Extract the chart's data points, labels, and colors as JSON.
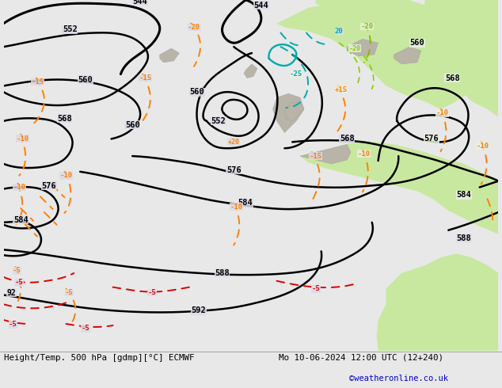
{
  "title_left": "Height/Temp. 500 hPa [gdmp][°C] ECMWF",
  "title_right": "Mo 10-06-2024 12:00 UTC (12+240)",
  "credit": "©weatheronline.co.uk",
  "bg_color": "#e8e8e8",
  "map_bg": "#e0e0e8",
  "green_light": "#c8e8a0",
  "green_medium": "#b0d880",
  "gray_land": "#c0b8b0",
  "contour_color": "#000000",
  "orange_color": "#ff8000",
  "red_color": "#dd0000",
  "cyan_color": "#00aaaa",
  "lime_color": "#88cc00",
  "credit_color": "#0000cc",
  "figsize": [
    6.34,
    4.9
  ],
  "dpi": 100
}
